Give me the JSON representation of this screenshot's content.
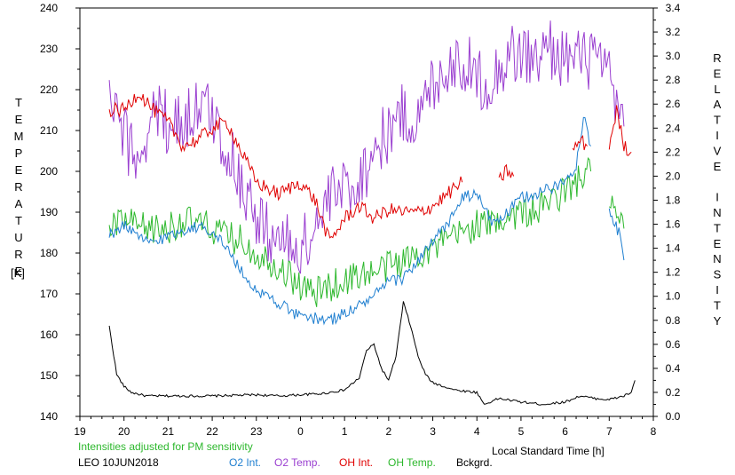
{
  "chart_data": {
    "type": "line",
    "left_axis_label": "TEMPERATURE",
    "left_axis_unit": "[K]",
    "right_axis_label": "RELATIVE INTENSITY",
    "xlabel": "Local Standard Time [h]",
    "note": "Intensities adjusted for PM sensitivity",
    "station": "LEO 10JUN2018",
    "x_ticks": [
      "19",
      "20",
      "21",
      "22",
      "23",
      "0",
      "1",
      "2",
      "3",
      "4",
      "5",
      "6",
      "7",
      "8"
    ],
    "x_range_hours_after_19": [
      0,
      13
    ],
    "left_ticks": [
      "140",
      "150",
      "160",
      "170",
      "180",
      "190",
      "200",
      "210",
      "220",
      "230",
      "240"
    ],
    "left_range": [
      140,
      240
    ],
    "right_ticks": [
      "0.0",
      "0.2",
      "0.4",
      "0.6",
      "0.8",
      "1.0",
      "1.2",
      "1.4",
      "1.6",
      "1.8",
      "2.0",
      "2.2",
      "2.4",
      "2.6",
      "2.8",
      "3.0",
      "3.2",
      "3.4"
    ],
    "right_range": [
      0.0,
      3.4
    ],
    "legend_placement": "bottom",
    "series": [
      {
        "name": "O2 Int.",
        "color": "#1f7fd0",
        "axis": "right",
        "noise": 0.05,
        "points": [
          [
            "19:40",
            1.5
          ],
          [
            "20:00",
            1.6
          ],
          [
            "20:20",
            1.48
          ],
          [
            "20:40",
            1.45
          ],
          [
            "21:00",
            1.5
          ],
          [
            "21:20",
            1.55
          ],
          [
            "21:40",
            1.58
          ],
          [
            "22:00",
            1.55
          ],
          [
            "22:20",
            1.4
          ],
          [
            "22:40",
            1.2
          ],
          [
            "23:00",
            1.05
          ],
          [
            "23:30",
            0.95
          ],
          [
            "0:00",
            0.82
          ],
          [
            "0:20",
            0.82
          ],
          [
            "0:40",
            0.8
          ],
          [
            "1:00",
            0.86
          ],
          [
            "1:20",
            0.92
          ],
          [
            "1:40",
            1.0
          ],
          [
            "2:00",
            1.12
          ],
          [
            "2:20",
            1.15
          ],
          [
            "2:40",
            1.3
          ],
          [
            "3:00",
            1.45
          ],
          [
            "3:20",
            1.6
          ],
          [
            "3:40",
            1.82
          ],
          [
            "4:00",
            1.85
          ],
          [
            "4:20",
            1.62
          ],
          [
            "4:40",
            1.68
          ],
          [
            "5:00",
            1.82
          ],
          [
            "5:20",
            1.85
          ],
          [
            "5:40",
            1.9
          ],
          [
            "6:00",
            1.95
          ],
          [
            "6:15",
            2.1
          ],
          [
            "6:25",
            2.5
          ],
          [
            "6:35",
            2.25
          ],
          [
            "6:45",
            null
          ],
          [
            "7:00",
            1.7
          ],
          [
            "7:15",
            1.5
          ],
          [
            "7:20",
            1.3
          ]
        ]
      },
      {
        "name": "O2 Temp.",
        "color": "#9a3fd0",
        "axis": "left",
        "noise": 8,
        "points": [
          [
            "19:40",
            218
          ],
          [
            "20:00",
            208
          ],
          [
            "20:20",
            203
          ],
          [
            "20:40",
            215
          ],
          [
            "21:00",
            212
          ],
          [
            "21:20",
            212
          ],
          [
            "21:40",
            216
          ],
          [
            "22:00",
            214
          ],
          [
            "22:20",
            205
          ],
          [
            "22:40",
            198
          ],
          [
            "23:00",
            188
          ],
          [
            "23:30",
            183
          ],
          [
            "0:00",
            181
          ],
          [
            "0:20",
            186
          ],
          [
            "0:40",
            193
          ],
          [
            "1:00",
            196
          ],
          [
            "1:20",
            198
          ],
          [
            "1:40",
            205
          ],
          [
            "2:00",
            210
          ],
          [
            "2:20",
            214
          ],
          [
            "2:40",
            212
          ],
          [
            "3:00",
            222
          ],
          [
            "3:20",
            226
          ],
          [
            "3:40",
            227
          ],
          [
            "4:00",
            223
          ],
          [
            "4:20",
            222
          ],
          [
            "4:40",
            228
          ],
          [
            "5:00",
            229
          ],
          [
            "5:20",
            227
          ],
          [
            "5:40",
            230
          ],
          [
            "6:00",
            228
          ],
          [
            "6:20",
            227
          ],
          [
            "6:40",
            228
          ],
          [
            "7:00",
            222
          ],
          [
            "7:20",
            211
          ]
        ]
      },
      {
        "name": "OH Int.",
        "color": "#e00000",
        "axis": "right",
        "noise": 0.06,
        "points": [
          [
            "19:40",
            2.55
          ],
          [
            "20:00",
            2.55
          ],
          [
            "20:20",
            2.7
          ],
          [
            "20:40",
            2.55
          ],
          [
            "21:00",
            2.45
          ],
          [
            "21:20",
            2.25
          ],
          [
            "21:40",
            2.3
          ],
          [
            "22:00",
            2.4
          ],
          [
            "22:20",
            2.45
          ],
          [
            "22:40",
            2.2
          ],
          [
            "23:00",
            1.95
          ],
          [
            "23:30",
            1.85
          ],
          [
            "0:00",
            1.95
          ],
          [
            "0:20",
            1.8
          ],
          [
            "0:40",
            1.45
          ],
          [
            "1:00",
            1.65
          ],
          [
            "1:20",
            1.75
          ],
          [
            "1:40",
            1.65
          ],
          [
            "2:00",
            1.72
          ],
          [
            "2:20",
            1.7
          ],
          [
            "2:40",
            1.7
          ],
          [
            "3:00",
            1.75
          ],
          [
            "3:20",
            1.85
          ],
          [
            "3:40",
            1.95
          ],
          [
            "3:50",
            null
          ],
          [
            "4:30",
            1.95
          ],
          [
            "4:40",
            2.05
          ],
          [
            "4:50",
            2.0
          ],
          [
            "5:00",
            null
          ],
          [
            "6:10",
            2.2
          ],
          [
            "6:20",
            2.3
          ],
          [
            "6:30",
            2.25
          ],
          [
            "6:40",
            null
          ],
          [
            "7:00",
            2.25
          ],
          [
            "7:10",
            2.55
          ],
          [
            "7:20",
            2.25
          ],
          [
            "7:30",
            2.2
          ]
        ]
      },
      {
        "name": "OH Temp.",
        "color": "#2db82d",
        "axis": "left",
        "noise": 4,
        "points": [
          [
            "19:40",
            186
          ],
          [
            "20:00",
            188
          ],
          [
            "20:20",
            186
          ],
          [
            "20:40",
            186
          ],
          [
            "21:00",
            186
          ],
          [
            "21:20",
            188
          ],
          [
            "21:40",
            187
          ],
          [
            "22:00",
            186
          ],
          [
            "22:20",
            184
          ],
          [
            "22:40",
            183
          ],
          [
            "23:00",
            180
          ],
          [
            "23:30",
            177
          ],
          [
            "0:00",
            172
          ],
          [
            "0:20",
            170
          ],
          [
            "0:40",
            172
          ],
          [
            "1:00",
            173
          ],
          [
            "1:20",
            175
          ],
          [
            "1:40",
            175
          ],
          [
            "2:00",
            177
          ],
          [
            "2:20",
            178
          ],
          [
            "2:40",
            180
          ],
          [
            "3:00",
            181
          ],
          [
            "3:20",
            183
          ],
          [
            "3:40",
            185
          ],
          [
            "4:00",
            187
          ],
          [
            "4:20",
            187
          ],
          [
            "4:40",
            189
          ],
          [
            "5:00",
            190
          ],
          [
            "5:20",
            190
          ],
          [
            "5:40",
            193
          ],
          [
            "6:00",
            195
          ],
          [
            "6:20",
            198
          ],
          [
            "6:35",
            200
          ],
          [
            "6:45",
            null
          ],
          [
            "7:00",
            194
          ],
          [
            "7:10",
            188
          ],
          [
            "7:20",
            186
          ]
        ]
      },
      {
        "name": "Bckgrd.",
        "color": "#000000",
        "axis": "right",
        "noise": 0.01,
        "points": [
          [
            "19:40",
            0.75
          ],
          [
            "19:50",
            0.35
          ],
          [
            "20:00",
            0.25
          ],
          [
            "20:10",
            0.2
          ],
          [
            "20:30",
            0.17
          ],
          [
            "21:00",
            0.17
          ],
          [
            "22:00",
            0.17
          ],
          [
            "23:00",
            0.18
          ],
          [
            "23:30",
            0.17
          ],
          [
            "0:00",
            0.18
          ],
          [
            "0:30",
            0.19
          ],
          [
            "1:00",
            0.22
          ],
          [
            "1:20",
            0.32
          ],
          [
            "1:30",
            0.55
          ],
          [
            "1:40",
            0.6
          ],
          [
            "1:50",
            0.4
          ],
          [
            "2:00",
            0.3
          ],
          [
            "2:10",
            0.5
          ],
          [
            "2:20",
            0.95
          ],
          [
            "2:30",
            0.75
          ],
          [
            "2:40",
            0.5
          ],
          [
            "2:50",
            0.35
          ],
          [
            "3:00",
            0.28
          ],
          [
            "3:30",
            0.22
          ],
          [
            "4:00",
            0.2
          ],
          [
            "4:10",
            0.1
          ],
          [
            "4:30",
            0.15
          ],
          [
            "5:00",
            0.12
          ],
          [
            "5:30",
            0.1
          ],
          [
            "6:00",
            0.12
          ],
          [
            "6:20",
            0.17
          ],
          [
            "6:40",
            0.15
          ],
          [
            "7:00",
            0.14
          ],
          [
            "7:20",
            0.17
          ],
          [
            "7:30",
            0.2
          ],
          [
            "7:35",
            0.3
          ]
        ]
      }
    ]
  }
}
